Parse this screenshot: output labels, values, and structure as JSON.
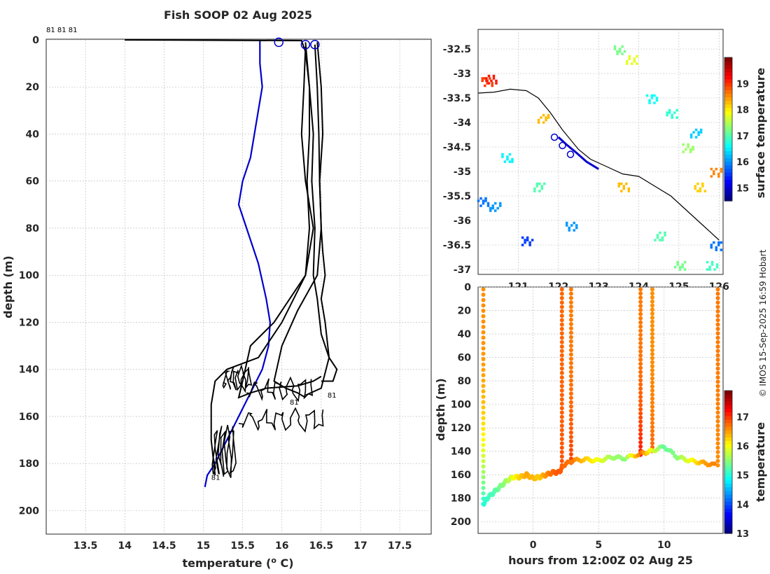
{
  "chart_data": [
    {
      "id": "profile",
      "type": "line",
      "title": "Fish SOOP 02 Aug 2025",
      "xlabel": "temperature (",
      "xlabel_sup": "o",
      "xlabel_end": " C)",
      "ylabel": "depth (m)",
      "xlim": [
        13.0,
        17.9
      ],
      "ylim": [
        0,
        210
      ],
      "xticks": [
        13.5,
        14,
        14.5,
        15,
        15.5,
        16,
        16.5,
        17,
        17.5
      ],
      "yticks": [
        0,
        20,
        40,
        60,
        80,
        100,
        120,
        140,
        160,
        180,
        200
      ],
      "top_labels": "81 81 81",
      "profile_labels": [
        {
          "text": "81",
          "x": 16.1,
          "y": 155
        },
        {
          "text": "81",
          "x": 16.58,
          "y": 152
        },
        {
          "text": "81",
          "x": 15.1,
          "y": 187
        }
      ],
      "climatology": {
        "name": "climatology",
        "color": "#0000cc",
        "temp": [
          15.72,
          15.72,
          15.75,
          15.7,
          15.65,
          15.6,
          15.5,
          15.45,
          15.5,
          15.6,
          15.7,
          15.8,
          15.85,
          15.83,
          15.75,
          15.6,
          15.45,
          15.3,
          15.15,
          15.05,
          15.02
        ],
        "depth": [
          0,
          10,
          20,
          30,
          40,
          50,
          60,
          70,
          75,
          85,
          95,
          110,
          120,
          130,
          140,
          150,
          160,
          170,
          180,
          185,
          190
        ]
      },
      "casts": [
        {
          "start_temp": 14.0,
          "temp": [
            14.0,
            16.25,
            16.3,
            16.35,
            16.4,
            16.38,
            16.42,
            16.4,
            16.45,
            16.5,
            16.6,
            16.7,
            16.65,
            16.5
          ],
          "depth": [
            0,
            0.3,
            5,
            20,
            40,
            60,
            80,
            100,
            110,
            125,
            135,
            140,
            145,
            145
          ]
        },
        {
          "temp": [
            16.42,
            16.45,
            16.47,
            16.48,
            16.5,
            16.52,
            16.55,
            16.5,
            16.55,
            16.6,
            16.5,
            16.3
          ],
          "depth": [
            2,
            20,
            40,
            60,
            80,
            90,
            100,
            110,
            120,
            135,
            148,
            151
          ]
        },
        {
          "temp": [
            16.45,
            16.5,
            16.52,
            16.48,
            16.5,
            16.45,
            16.2,
            16.0,
            15.9,
            16.05,
            16.2,
            16.3
          ],
          "depth": [
            1,
            20,
            40,
            60,
            80,
            100,
            115,
            130,
            145,
            148,
            150,
            152
          ]
        },
        {
          "temp": [
            16.3,
            16.35,
            16.35,
            16.32,
            16.35,
            16.3,
            16.1,
            15.9,
            15.6,
            15.5,
            15.45,
            15.6,
            15.8,
            16.2,
            16.4,
            16.5
          ],
          "depth": [
            1,
            20,
            40,
            60,
            80,
            100,
            110,
            120,
            130,
            145,
            152,
            150,
            148,
            147,
            145,
            143
          ]
        },
        {
          "temp": [
            16.3,
            16.28,
            16.25,
            16.3,
            16.4,
            16.3,
            16.0,
            15.7,
            15.3,
            15.15,
            15.1,
            15.1,
            15.15
          ],
          "depth": [
            3,
            20,
            40,
            60,
            80,
            100,
            120,
            135,
            140,
            145,
            155,
            170,
            185
          ]
        }
      ],
      "surface_markers": [
        {
          "temp": 15.96,
          "depth": 1
        },
        {
          "temp": 16.3,
          "depth": 2
        },
        {
          "temp": 16.42,
          "depth": 2
        }
      ]
    },
    {
      "id": "map",
      "type": "heatmap",
      "xlim": [
        120.0,
        126.1
      ],
      "ylim": [
        -37.1,
        -32.1
      ],
      "xticks": [
        121,
        122,
        123,
        124,
        125,
        126
      ],
      "xtick_labels": [
        "121",
        "122",
        "123",
        "124",
        "125",
        "126"
      ],
      "yticks": [
        -32.5,
        -33,
        -33.5,
        -34,
        -34.5,
        -35,
        -35.5,
        -36,
        -36.5,
        -37
      ],
      "ytick_labels": [
        "-32.5",
        "-33",
        "-33.5",
        "-34",
        "-34.5",
        "-35",
        "-35.5",
        "-36",
        "-36.5",
        "-37"
      ],
      "colorbar_label": "surface temperature",
      "colorbar_range": [
        14.5,
        20
      ],
      "colorbar_ticks": [
        15,
        16,
        17,
        18,
        19
      ],
      "track": {
        "lon": [
          122.0,
          122.2,
          122.45,
          122.7,
          123.0
        ],
        "lat": [
          -34.3,
          -34.45,
          -34.62,
          -34.8,
          -34.95
        ]
      },
      "track_markers": [
        {
          "lon": 121.9,
          "lat": -34.3
        },
        {
          "lon": 122.1,
          "lat": -34.47
        },
        {
          "lon": 122.3,
          "lat": -34.65
        }
      ],
      "coastline_lon": [
        120.0,
        120.4,
        120.8,
        121.2,
        121.5,
        121.8,
        122.1,
        122.5,
        122.8,
        123.2,
        123.6,
        124.0,
        124.4,
        124.8,
        125.2,
        125.6,
        126.0
      ],
      "coastline_lat": [
        -33.4,
        -33.38,
        -33.32,
        -33.35,
        -33.5,
        -33.8,
        -34.15,
        -34.55,
        -34.75,
        -34.9,
        -35.05,
        -35.1,
        -35.3,
        -35.5,
        -35.8,
        -36.1,
        -36.4
      ],
      "sst_patches": [
        {
          "lon": 120.2,
          "lat": -33.15,
          "t": 19.0
        },
        {
          "lon": 121.6,
          "lat": -33.9,
          "t": 18.3
        },
        {
          "lon": 123.5,
          "lat": -32.5,
          "t": 17.2
        },
        {
          "lon": 123.8,
          "lat": -32.7,
          "t": 17.8
        },
        {
          "lon": 124.3,
          "lat": -33.5,
          "t": 16.6
        },
        {
          "lon": 124.8,
          "lat": -33.8,
          "t": 16.8
        },
        {
          "lon": 125.2,
          "lat": -34.5,
          "t": 17.4
        },
        {
          "lon": 125.5,
          "lat": -35.3,
          "t": 18.2
        },
        {
          "lon": 125.9,
          "lat": -35.0,
          "t": 18.6
        },
        {
          "lon": 120.1,
          "lat": -35.6,
          "t": 15.8
        },
        {
          "lon": 120.4,
          "lat": -35.7,
          "t": 16.0
        },
        {
          "lon": 120.7,
          "lat": -34.7,
          "t": 16.5
        },
        {
          "lon": 121.5,
          "lat": -35.3,
          "t": 17.0
        },
        {
          "lon": 122.3,
          "lat": -36.1,
          "t": 16.0
        },
        {
          "lon": 125.0,
          "lat": -36.9,
          "t": 17.2
        },
        {
          "lon": 125.8,
          "lat": -36.9,
          "t": 16.9
        },
        {
          "lon": 125.9,
          "lat": -36.5,
          "t": 15.8
        },
        {
          "lon": 121.2,
          "lat": -36.4,
          "t": 15.5
        },
        {
          "lon": 120.3,
          "lat": -33.1,
          "t": 19.2
        },
        {
          "lon": 124.5,
          "lat": -36.3,
          "t": 17.0
        },
        {
          "lon": 123.6,
          "lat": -35.3,
          "t": 18.3
        },
        {
          "lon": 125.4,
          "lat": -34.2,
          "t": 16.3
        }
      ]
    },
    {
      "id": "section",
      "type": "scatter",
      "xlabel": "hours from 12:00Z 02 Aug 25",
      "ylabel": "depth (m)",
      "xlim": [
        -4.2,
        14.5
      ],
      "ylim": [
        0,
        210
      ],
      "xticks": [
        0,
        5,
        10
      ],
      "yticks": [
        0,
        20,
        40,
        60,
        80,
        100,
        120,
        140,
        160,
        180,
        200
      ],
      "colorbar_label": "temperature",
      "colorbar_range": [
        13,
        17.9
      ],
      "colorbar_ticks": [
        13,
        14,
        15,
        16,
        17
      ],
      "bottom_path": {
        "hours": [
          -3.8,
          -3.5,
          -3.0,
          -2.5,
          -2.0,
          -1.5,
          -1.0,
          -0.5,
          0.0,
          0.5,
          1.0,
          1.5,
          2.0,
          2.3,
          3.0,
          4.0,
          5.0,
          6.0,
          7.0,
          8.2,
          9.0,
          10.0,
          11.0,
          12.0,
          13.0,
          14.0
        ],
        "depth": [
          185,
          180,
          175,
          170,
          165,
          162,
          162,
          160,
          163,
          162,
          160,
          158,
          158,
          152,
          148,
          147,
          148,
          145,
          146,
          142,
          140,
          136,
          145,
          148,
          150,
          152
        ],
        "temp": [
          15.0,
          15.1,
          15.2,
          15.4,
          15.6,
          16.0,
          16.3,
          16.5,
          16.4,
          16.3,
          16.6,
          16.8,
          16.9,
          16.8,
          16.7,
          16.3,
          16.0,
          15.6,
          15.5,
          16.8,
          16.0,
          15.3,
          15.5,
          16.0,
          16.5,
          16.7
        ]
      },
      "verticals": [
        {
          "hours": -3.8,
          "temp_top": 16.6,
          "temp_bottom": 15.0,
          "depth_bottom": 185
        },
        {
          "hours": 2.2,
          "temp_top": 16.8,
          "temp_bottom": 16.9,
          "depth_bottom": 152
        },
        {
          "hours": 2.9,
          "temp_top": 16.7,
          "temp_bottom": 17.0,
          "depth_bottom": 150
        },
        {
          "hours": 8.2,
          "temp_top": 16.7,
          "temp_bottom": 17.2,
          "depth_bottom": 143
        },
        {
          "hours": 9.1,
          "temp_top": 16.6,
          "temp_bottom": 16.8,
          "depth_bottom": 140
        },
        {
          "hours": 14.1,
          "temp_top": 16.7,
          "temp_bottom": 16.6,
          "depth_bottom": 152
        }
      ]
    }
  ],
  "credit": "© IMOS 15-Sep-2025 16:59 Hobart"
}
